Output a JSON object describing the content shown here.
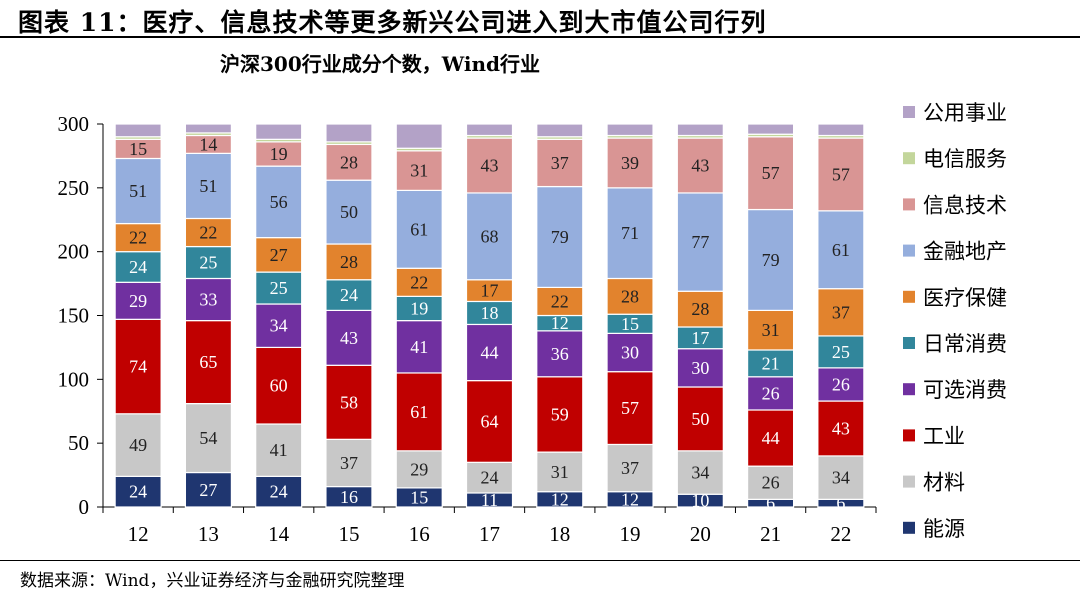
{
  "figure_title": "图表 11：医疗、信息技术等更多新兴公司进入到大市值公司行列",
  "source": "数据来源：Wind，兴业证券经济与金融研究院整理",
  "chart_data": {
    "type": "bar",
    "stacked": true,
    "title": "沪深300行业成分个数，Wind行业",
    "xlabel": "",
    "ylabel": "",
    "ylim": [
      0,
      300
    ],
    "yticks": [
      0,
      50,
      100,
      150,
      200,
      250,
      300
    ],
    "categories": [
      "12",
      "13",
      "14",
      "15",
      "16",
      "17",
      "18",
      "19",
      "20",
      "21",
      "22"
    ],
    "legend_position": "right",
    "grid": false,
    "series": [
      {
        "name": "能源",
        "color": "#1f3670",
        "label_color": "#ffffff",
        "values": [
          24,
          27,
          24,
          16,
          15,
          11,
          12,
          12,
          10,
          6,
          6
        ],
        "labels": [
          "24",
          "27",
          "24",
          "16",
          "15",
          "11",
          "12",
          "12",
          "10",
          "6",
          "6"
        ]
      },
      {
        "name": "材料",
        "color": "#c8c8c8",
        "label_color": "#222222",
        "values": [
          49,
          54,
          41,
          37,
          29,
          24,
          31,
          37,
          34,
          26,
          34
        ],
        "labels": [
          "49",
          "54",
          "41",
          "37",
          "29",
          "24",
          "31",
          "37",
          "34",
          "26",
          "34"
        ]
      },
      {
        "name": "工业",
        "color": "#c00000",
        "label_color": "#ffffff",
        "values": [
          74,
          65,
          60,
          58,
          61,
          64,
          59,
          57,
          50,
          44,
          43
        ],
        "labels": [
          "74",
          "65",
          "60",
          "58",
          "61",
          "64",
          "59",
          "57",
          "50",
          "44",
          "43"
        ]
      },
      {
        "name": "可选消费",
        "color": "#7030a0",
        "label_color": "#ffffff",
        "values": [
          29,
          33,
          34,
          43,
          41,
          44,
          36,
          30,
          30,
          26,
          26
        ],
        "labels": [
          "29",
          "33",
          "34",
          "43",
          "41",
          "44",
          "36",
          "30",
          "30",
          "26",
          "26"
        ]
      },
      {
        "name": "日常消费",
        "color": "#31869b",
        "label_color": "#ffffff",
        "values": [
          24,
          25,
          25,
          24,
          19,
          18,
          12,
          15,
          17,
          21,
          25
        ],
        "labels": [
          "24",
          "25",
          "25",
          "24",
          "19",
          "18",
          "12",
          "15",
          "17",
          "21",
          "25"
        ]
      },
      {
        "name": "医疗保健",
        "color": "#e2832d",
        "label_color": "#222222",
        "values": [
          22,
          22,
          27,
          28,
          22,
          17,
          22,
          28,
          28,
          31,
          37
        ],
        "labels": [
          "22",
          "22",
          "27",
          "28",
          "22",
          "17",
          "22",
          "28",
          "28",
          "31",
          "37"
        ]
      },
      {
        "name": "金融地产",
        "color": "#95aedd",
        "label_color": "#222222",
        "values": [
          51,
          51,
          56,
          50,
          61,
          68,
          79,
          71,
          77,
          79,
          61
        ],
        "labels": [
          "51",
          "51",
          "56",
          "50",
          "61",
          "68",
          "79",
          "71",
          "77",
          "79",
          "61"
        ]
      },
      {
        "name": "信息技术",
        "color": "#d99594",
        "label_color": "#222222",
        "values": [
          15,
          14,
          19,
          28,
          31,
          43,
          37,
          39,
          43,
          57,
          57
        ],
        "labels": [
          "15",
          "14",
          "19",
          "28",
          "31",
          "43",
          "37",
          "39",
          "43",
          "57",
          "57"
        ]
      },
      {
        "name": "电信服务",
        "color": "#c3d69b",
        "label_color": "#222222",
        "values": [
          2,
          2,
          2,
          2,
          2,
          2,
          2,
          2,
          2,
          2,
          2
        ],
        "labels": [
          "",
          "",
          "",
          "",
          "",
          "",
          "",
          "",
          "",
          "",
          ""
        ]
      },
      {
        "name": "公用事业",
        "color": "#b3a2c7",
        "label_color": "#222222",
        "values": [
          10,
          7,
          12,
          14,
          19,
          9,
          10,
          9,
          9,
          8,
          9
        ],
        "labels": [
          "",
          "",
          "",
          "",
          "",
          "",
          "",
          "",
          "",
          "",
          ""
        ]
      }
    ],
    "legend_order": [
      "公用事业",
      "电信服务",
      "信息技术",
      "金融地产",
      "医疗保健",
      "日常消费",
      "可选消费",
      "工业",
      "材料",
      "能源"
    ]
  }
}
